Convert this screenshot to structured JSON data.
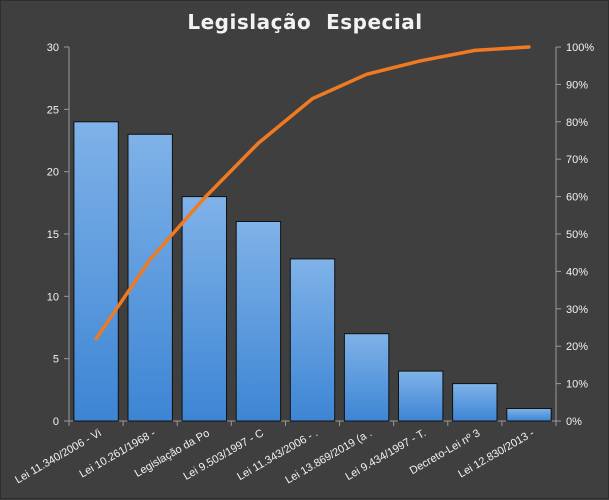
{
  "chart_data": {
    "type": "bar",
    "title": "Legislação  Especial",
    "categories": [
      "Lei 11.340/2006 - Vi",
      "Lei 10.261/1968 -",
      "Legislação da Po",
      "Lei 9.503/1997 - C",
      "Lei 11.343/2006 - .",
      "Lei 13.869/2019 (a .",
      "Lei 9.434/1997 - T.",
      "Decreto-Lei nº 3",
      "Lei 12.830/2013 -"
    ],
    "series": [
      {
        "type": "bar",
        "values": [
          24,
          23,
          18,
          16,
          13,
          7,
          4,
          3,
          1
        ]
      },
      {
        "type": "line",
        "axis": "right",
        "values": [
          22,
          43.2,
          59.6,
          74.3,
          86.2,
          92.7,
          96.3,
          99.1,
          100
        ]
      }
    ],
    "ylim": [
      0,
      30
    ],
    "yticks": [
      0,
      5,
      10,
      15,
      20,
      25,
      30
    ],
    "y2lim": [
      0,
      100
    ],
    "y2ticks": [
      "0%",
      "10%",
      "20%",
      "30%",
      "40%",
      "50%",
      "60%",
      "70%",
      "80%",
      "90%",
      "100%"
    ],
    "grid": false,
    "legend": "none",
    "colors": {
      "bar": "#4a90d9",
      "bar_top": "#7fb2e8",
      "bar_edge": "#111111",
      "line": "#f07a22",
      "axis": "#9a9a9a",
      "background": "#3f3f3f",
      "text": "#f2f2f2"
    }
  }
}
